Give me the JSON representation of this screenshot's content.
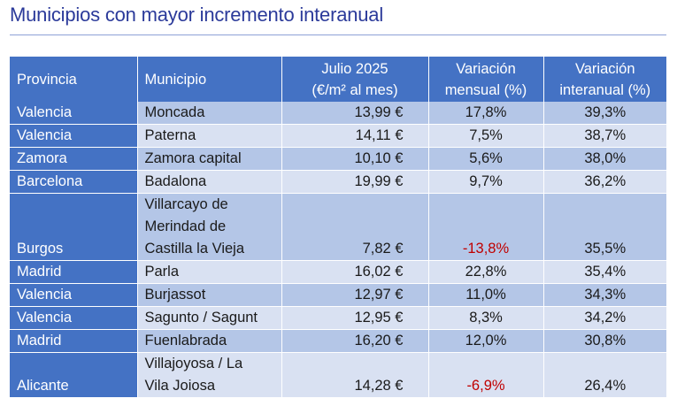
{
  "title": "Municipios con mayor incremento interanual",
  "headers": {
    "provincia": "Provincia",
    "municipio": "Municipio",
    "precio_l1": "Julio 2025",
    "precio_l2": "(€/m² al mes)",
    "var_mensual_l1": "Variación",
    "var_mensual_l2": "mensual (%)",
    "var_interanual_l1": "Variación",
    "var_interanual_l2": "interanual (%)"
  },
  "rows": [
    {
      "provincia": "Valencia",
      "municipio": [
        "Moncada"
      ],
      "precio": "13,99 €",
      "var_mensual": "17,8%",
      "var_interanual": "39,3%"
    },
    {
      "provincia": "Valencia",
      "municipio": [
        "Paterna"
      ],
      "precio": "14,11 €",
      "var_mensual": "7,5%",
      "var_interanual": "38,7%"
    },
    {
      "provincia": "Zamora",
      "municipio": [
        "Zamora capital"
      ],
      "precio": "10,10 €",
      "var_mensual": "5,6%",
      "var_interanual": "38,0%"
    },
    {
      "provincia": "Barcelona",
      "municipio": [
        "Badalona"
      ],
      "precio": "19,99 €",
      "var_mensual": "9,7%",
      "var_interanual": "36,2%"
    },
    {
      "provincia": "Burgos",
      "municipio": [
        "Villarcayo de",
        "Merindad de",
        "Castilla la Vieja"
      ],
      "precio": "7,82 €",
      "var_mensual": "-13,8%",
      "var_interanual": "35,5%"
    },
    {
      "provincia": "Madrid",
      "municipio": [
        "Parla"
      ],
      "precio": "16,02 €",
      "var_mensual": "22,8%",
      "var_interanual": "35,4%"
    },
    {
      "provincia": "Valencia",
      "municipio": [
        "Burjassot"
      ],
      "precio": "12,97 €",
      "var_mensual": "11,0%",
      "var_interanual": "34,3%"
    },
    {
      "provincia": "Valencia",
      "municipio": [
        "Sagunto / Sagunt"
      ],
      "precio": "12,95 €",
      "var_mensual": "8,3%",
      "var_interanual": "34,2%"
    },
    {
      "provincia": "Madrid",
      "municipio": [
        "Fuenlabrada"
      ],
      "precio": "16,20 €",
      "var_mensual": "12,0%",
      "var_interanual": "30,8%"
    },
    {
      "provincia": "Alicante",
      "municipio": [
        "Villajoyosa / La",
        "Vila Joiosa"
      ],
      "precio": "14,28 €",
      "var_mensual": "-6,9%",
      "var_interanual": "26,4%"
    }
  ],
  "colors": {
    "header_bg": "#4472c4",
    "row_odd": "#b4c6e7",
    "row_even": "#d9e1f2",
    "negative": "#c00000",
    "title": "#2b3a9a"
  }
}
